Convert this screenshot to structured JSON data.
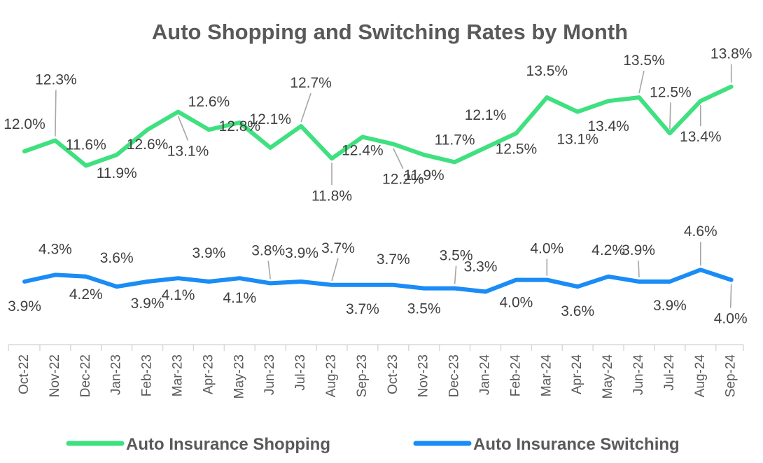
{
  "chart_data": {
    "type": "line",
    "title": "Auto Shopping and Switching Rates by Month",
    "xlabel": "",
    "ylabel": "",
    "categories": [
      "Oct-22",
      "Nov-22",
      "Dec-22",
      "Jan-23",
      "Feb-23",
      "Mar-23",
      "Apr-23",
      "May-23",
      "Jun-23",
      "Jul-23",
      "Aug-23",
      "Sep-23",
      "Oct-23",
      "Nov-23",
      "Dec-23",
      "Jan-24",
      "Feb-24",
      "Mar-24",
      "Apr-24",
      "May-24",
      "Jun-24",
      "Jul-24",
      "Aug-24",
      "Sep-24"
    ],
    "series": [
      {
        "name": "Auto Insurance Shopping",
        "color": "#3fe07f",
        "values": [
          12.0,
          12.3,
          11.6,
          11.9,
          12.6,
          13.1,
          12.6,
          12.8,
          12.1,
          12.7,
          11.8,
          12.4,
          12.2,
          11.9,
          11.7,
          12.1,
          12.5,
          13.5,
          13.1,
          13.4,
          13.5,
          12.5,
          13.4,
          13.8
        ],
        "labels": [
          "12.0%",
          "12.3%",
          "11.6%",
          "11.9%",
          "12.6%",
          "13.1%",
          "12.6%",
          "12.8%",
          "12.1%",
          "12.7%",
          "11.8%",
          "12.4%",
          "12.2%",
          "11.9%",
          "11.7%",
          "12.1%",
          "12.5%",
          "13.5%",
          "13.1%",
          "13.4%",
          "13.5%",
          "12.5%",
          "13.4%",
          "13.8%"
        ]
      },
      {
        "name": "Auto Insurance Switching",
        "color": "#1a8cf5",
        "values": [
          3.9,
          4.3,
          4.2,
          3.6,
          3.9,
          4.1,
          3.9,
          4.1,
          3.8,
          3.9,
          3.7,
          3.7,
          3.7,
          3.5,
          3.5,
          3.3,
          4.0,
          4.0,
          3.6,
          4.2,
          3.9,
          3.9,
          4.6,
          4.0
        ],
        "labels": [
          "3.9%",
          "4.3%",
          "4.2%",
          "3.6%",
          "3.9%",
          "4.1%",
          "3.9%",
          "4.1%",
          "3.8%",
          "3.9%",
          "3.7%",
          "3.7%",
          "3.7%",
          "3.5%",
          "3.5%",
          "3.3%",
          "4.0%",
          "4.0%",
          "3.6%",
          "4.2%",
          "3.9%",
          "3.9%",
          "4.6%",
          "4.0%"
        ]
      }
    ],
    "legend_position": "bottom",
    "grid": false
  }
}
